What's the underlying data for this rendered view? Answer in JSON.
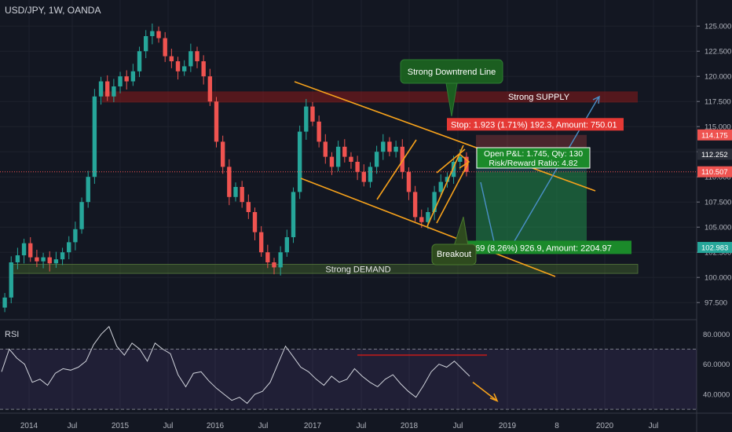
{
  "header": {
    "symbol": "USD/JPY, 1W, OANDA"
  },
  "colors": {
    "background": "#131722",
    "up": "#26a69a",
    "down": "#ef5350",
    "trendline": "#f7a21b",
    "arrow": "#4a90c8",
    "rsi": "#d1d4dc",
    "supply": "#8b1a1a",
    "demand": "#3d5a2a"
  },
  "chart_data": [
    {
      "type": "candlestick",
      "x_ticks": [
        "2014",
        "Jul",
        "2015",
        "Jul",
        "2016",
        "Jul",
        "2017",
        "Jul",
        "2018",
        "Jul",
        "2019",
        "8",
        "2020",
        "Jul"
      ],
      "y_ticks": [
        "125.000",
        "122.500",
        "120.000",
        "117.500",
        "115.000",
        "112.500",
        "110.000",
        "107.500",
        "105.000",
        "102.500",
        "100.000",
        "97.500"
      ],
      "ylim": [
        96.5,
        126.5
      ],
      "price_badges": [
        {
          "label": "114.175",
          "value": 114.175,
          "color": "#ef5350"
        },
        {
          "label": "112.252",
          "value": 112.252,
          "color": "#2a2e39"
        },
        {
          "label": "110.507",
          "value": 110.507,
          "color": "#ef5350"
        },
        {
          "label": "102.983",
          "value": 102.983,
          "color": "#26a69a"
        }
      ],
      "weekly_closes_approx": [
        98.0,
        101.5,
        102.2,
        103.4,
        102.0,
        101.6,
        102.0,
        101.4,
        101.8,
        102.5,
        103.5,
        104.8,
        107.5,
        110.0,
        118.0,
        119.5,
        118.0,
        119.0,
        120.0,
        119.5,
        120.5,
        122.5,
        124.0,
        124.5,
        123.8,
        122.0,
        121.5,
        120.5,
        121.0,
        122.5,
        121.5,
        120.0,
        117.5,
        113.5,
        111.0,
        108.0,
        109.0,
        107.5,
        106.5,
        104.5,
        102.5,
        101.5,
        101.0,
        102.5,
        104.0,
        108.5,
        114.5,
        117.0,
        115.5,
        113.5,
        112.0,
        111.0,
        113.0,
        112.0,
        111.5,
        110.5,
        109.5,
        111.0,
        112.5,
        113.5,
        112.5,
        113.0,
        110.5,
        108.5,
        106.0,
        105.5,
        106.5,
        108.5,
        109.5,
        110.0,
        111.5,
        112.0,
        110.5
      ],
      "annotations": {
        "supply_label": "Strong SUPPLY",
        "demand_label": "Strong DEMAND",
        "callout_downtrend": "Strong Downtrend Line",
        "callout_breakout": "Breakout",
        "stop_label": "Stop: 1.923 (1.71%) 192.3, Amount: 750.01",
        "pnl_line1": "Open P&L: 1.745, Qty: 130",
        "pnl_line2": "Risk/Reward Ratio: 4.82",
        "target_label": ".269 (8.26%) 926.9, Amount: 2204.97"
      }
    },
    {
      "type": "line",
      "title": "RSI",
      "y_ticks": [
        "80.0000",
        "60.0000",
        "40.0000"
      ],
      "ylim": [
        28,
        88
      ],
      "levels": [
        70,
        30
      ],
      "values_approx": [
        55,
        70,
        64,
        60,
        48,
        50,
        46,
        54,
        57,
        56,
        58,
        62,
        73,
        80,
        85,
        72,
        66,
        74,
        70,
        62,
        74,
        70,
        67,
        53,
        45,
        54,
        55,
        49,
        44,
        40,
        36,
        38,
        34,
        40,
        42,
        48,
        60,
        72,
        65,
        58,
        55,
        50,
        46,
        52,
        48,
        50,
        57,
        52,
        48,
        45,
        50,
        53,
        47,
        42,
        38,
        46,
        55,
        60,
        58,
        62,
        57,
        52
      ]
    }
  ]
}
